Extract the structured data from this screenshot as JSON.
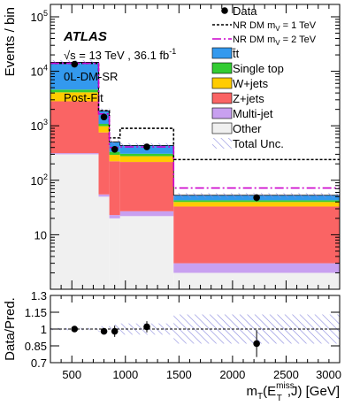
{
  "chart_data": {
    "type": "bar",
    "stacked": true,
    "log_y": true,
    "experiment": "ATLAS",
    "energy_label": "√s = 13 TeV , 36.1 fb",
    "energy_sup": "-1",
    "region_label": "0L-DM-SR",
    "fit_label": "Post-Fit",
    "ylabel": "Events / bin",
    "xlabel": "m_T(E_T^miss, J) [GeV]",
    "xlabel_parts": {
      "m": "m",
      "T": "T",
      "open": "(E",
      "miss": "miss",
      "Tsub": "T",
      "close": ",J) [GeV]"
    },
    "ratio_ylabel": "Data/Pred.",
    "xlim": [
      300,
      3000
    ],
    "ylim": [
      1,
      100000
    ],
    "bin_edges": [
      300,
      750,
      850,
      950,
      1450,
      3000
    ],
    "legend_position": "top-right",
    "series": [
      {
        "name": "Other",
        "color": "#f0f0f0",
        "values": [
          300,
          50,
          20,
          22,
          2.0
        ]
      },
      {
        "name": "Multi-jet",
        "color": "#c8a0f0",
        "values": [
          15,
          5,
          3,
          5,
          1.0
        ]
      },
      {
        "name": "Z+jets",
        "color": "#fa6464",
        "values": [
          2500,
          700,
          200,
          190,
          30
        ]
      },
      {
        "name": "W+jets",
        "color": "#ffcc00",
        "values": [
          1300,
          230,
          70,
          60,
          7
        ]
      },
      {
        "name": "Single top",
        "color": "#33cc33",
        "values": [
          500,
          100,
          40,
          30,
          3.0
        ]
      },
      {
        "name": "t̄t",
        "color": "#3399ee",
        "values": [
          10000,
          800,
          170,
          130,
          10
        ]
      }
    ],
    "total_unc": {
      "name": "Total Unc.",
      "hatch_color": "#8888dd",
      "band_lo": 0.9,
      "band_hi": 1.1
    },
    "signals": [
      {
        "name_main": "NR DM m",
        "name_sub": "V",
        "name_tail": " = 1 TeV",
        "style": "dotted",
        "color": "#000000",
        "values": [
          14000,
          1900,
          600,
          900,
          240
        ]
      },
      {
        "name_main": "NR DM m",
        "name_sub": "V",
        "name_tail": " = 2 TeV",
        "style": "dashdot",
        "color": "#cc00cc",
        "values": [
          14000,
          1650,
          400,
          410,
          72
        ]
      }
    ],
    "data": {
      "name": "Data",
      "x": [
        525,
        800,
        900,
        1200,
        2225
      ],
      "y": [
        13500,
        1450,
        370,
        410,
        48
      ],
      "yerr": [
        116,
        38,
        19,
        20,
        7
      ]
    },
    "ratio": {
      "ylim": [
        0.7,
        1.3
      ],
      "ticks": [
        "0.7",
        "0.85",
        "1",
        "1.15",
        "1.3"
      ],
      "tick_values": [
        0.7,
        0.85,
        1.0,
        1.15,
        1.3
      ],
      "x": [
        525,
        800,
        900,
        1200,
        2225
      ],
      "y": [
        1.0,
        0.98,
        0.98,
        1.02,
        0.87
      ],
      "yerr": [
        0.01,
        0.02,
        0.05,
        0.05,
        0.12
      ],
      "band_halfwidth": [
        0.01,
        0.025,
        0.04,
        0.05,
        0.13
      ]
    },
    "x_ticks": [
      "500",
      "1000",
      "1500",
      "2000",
      "2500",
      "3000"
    ],
    "x_tick_values": [
      500,
      1000,
      1500,
      2000,
      2500,
      3000
    ],
    "y_ticks": [
      {
        "base": "10",
        "exp": "",
        "value": 10
      },
      {
        "base": "10",
        "exp": "2",
        "value": 100
      },
      {
        "base": "10",
        "exp": "3",
        "value": 1000
      },
      {
        "base": "10",
        "exp": "4",
        "value": 10000
      },
      {
        "base": "10",
        "exp": "5",
        "value": 100000
      }
    ]
  }
}
